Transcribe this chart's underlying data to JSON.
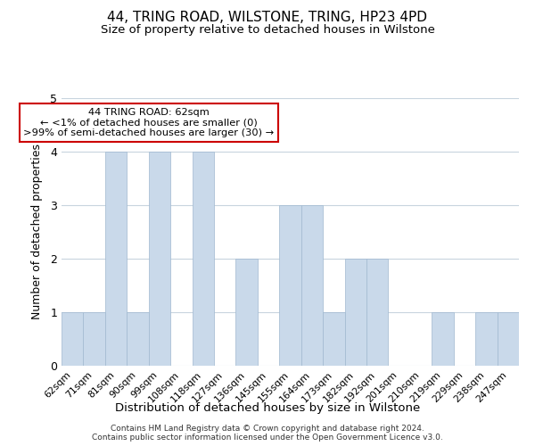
{
  "title": "44, TRING ROAD, WILSTONE, TRING, HP23 4PD",
  "subtitle": "Size of property relative to detached houses in Wilstone",
  "xlabel": "Distribution of detached houses by size in Wilstone",
  "ylabel": "Number of detached properties",
  "categories": [
    "62sqm",
    "71sqm",
    "81sqm",
    "90sqm",
    "99sqm",
    "108sqm",
    "118sqm",
    "127sqm",
    "136sqm",
    "145sqm",
    "155sqm",
    "164sqm",
    "173sqm",
    "182sqm",
    "192sqm",
    "201sqm",
    "210sqm",
    "219sqm",
    "229sqm",
    "238sqm",
    "247sqm"
  ],
  "values": [
    1,
    1,
    4,
    1,
    4,
    0,
    4,
    0,
    2,
    0,
    3,
    3,
    1,
    2,
    2,
    0,
    0,
    1,
    0,
    1,
    1
  ],
  "bar_color": "#c9d9ea",
  "bar_edge_color": "#a0b8d0",
  "ylim": [
    0,
    5
  ],
  "yticks": [
    0,
    1,
    2,
    3,
    4,
    5
  ],
  "annotation_title": "44 TRING ROAD: 62sqm",
  "annotation_line1": "← <1% of detached houses are smaller (0)",
  "annotation_line2": ">99% of semi-detached houses are larger (30) →",
  "annotation_box_color": "#ffffff",
  "annotation_border_color": "#cc0000",
  "footer_line1": "Contains HM Land Registry data © Crown copyright and database right 2024.",
  "footer_line2": "Contains public sector information licensed under the Open Government Licence v3.0.",
  "background_color": "#ffffff",
  "grid_color": "#c8d4de"
}
